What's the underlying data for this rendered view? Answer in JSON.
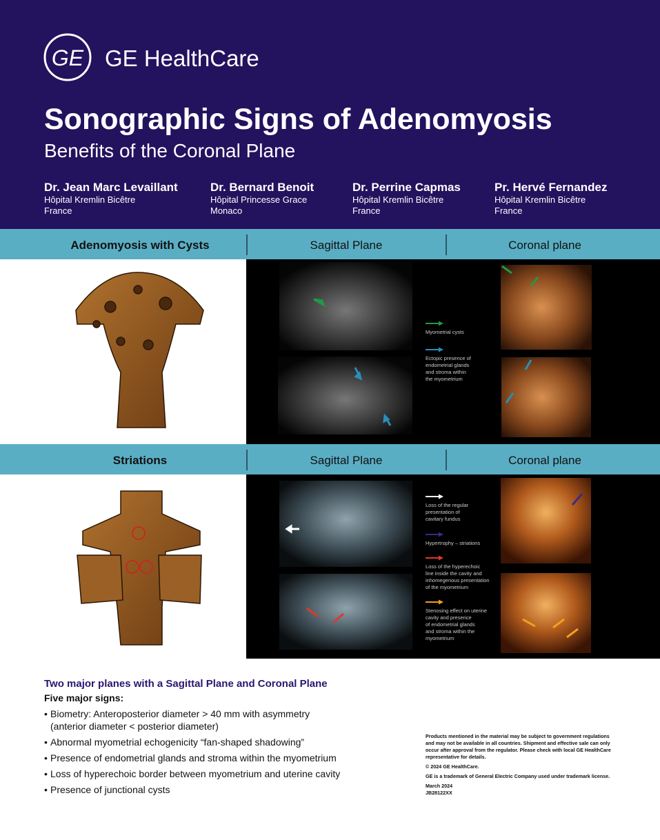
{
  "header": {
    "logo": "GE",
    "brand": "GE HealthCare",
    "title": "Sonographic Signs of Adenomyosis",
    "subtitle": "Benefits of the Coronal Plane",
    "authors": [
      {
        "name": "Dr. Jean Marc Levaillant",
        "affiliation": "Hôpital Kremlin Bicêtre",
        "country": "France"
      },
      {
        "name": "Dr. Bernard Benoit",
        "affiliation": "Hôpital Princesse Grace",
        "country": "Monaco"
      },
      {
        "name": "Dr. Perrine Capmas",
        "affiliation": "Hôpital Kremlin Bicêtre",
        "country": "France"
      },
      {
        "name": "Pr. Hervé Fernandez",
        "affiliation": "Hôpital Kremlin Bicêtre",
        "country": "France"
      }
    ]
  },
  "sections": [
    {
      "headers": [
        "Adenomyosis with Cysts",
        "Sagittal Plane",
        "Coronal plane"
      ],
      "legend": [
        {
          "color": "#1e9a4a",
          "lines": [
            "Myometrial cysts"
          ]
        },
        {
          "color": "#2a8fb8",
          "lines": [
            "Ectopic presence of",
            "endometrial glands",
            "and stroma within",
            "the myometrium"
          ]
        }
      ]
    },
    {
      "headers": [
        "Striations",
        "Sagittal Plane",
        "Coronal plane"
      ],
      "legend": [
        {
          "color": "#ffffff",
          "lines": [
            "Loss of the regular",
            "presentation of",
            "cavitary fundus"
          ]
        },
        {
          "color": "#3a2a8a",
          "lines": [
            "Hypertrophy – striations"
          ]
        },
        {
          "color": "#e0382a",
          "lines": [
            "Loss of the hyperechoic",
            "line inside the cavity and",
            "inhomegenous presentation",
            "of the myometrium"
          ]
        },
        {
          "color": "#f0a020",
          "lines": [
            "Stenosing effect on uterine",
            "cavity and presence",
            "of endometrial glands",
            "and stroma within the",
            "myometrium"
          ]
        }
      ]
    }
  ],
  "summary": {
    "heading": "Two major planes with a Sagittal Plane and Coronal Plane",
    "subheading": "Five major signs:",
    "signs": [
      {
        "lines": [
          "Biometry: Anteroposterior diameter > 40 mm with asymmetry",
          "(anterior diameter < posterior diameter)"
        ]
      },
      {
        "lines": [
          "Abnormal myometrial echogenicity “fan-shaped shadowing”"
        ]
      },
      {
        "lines": [
          "Presence of endometrial glands and stroma within the myometrium"
        ]
      },
      {
        "lines": [
          "Loss of hyperechoic border between myometrium and uterine cavity"
        ]
      },
      {
        "lines": [
          "Presence of junctional cysts"
        ]
      }
    ]
  },
  "footer": {
    "disclaimer": [
      "Products mentioned in the material may be subject to government regulations",
      "and may not be available in all countries. Shipment and effective sale can only",
      "occur after approval from the regulator. Please check with local GE HealthCare",
      "representative for details."
    ],
    "copyright": "© 2024 GE HealthCare.",
    "trademark": "GE is a trademark of General Electric Company used under trademark license.",
    "date": "March 2024",
    "code": "JB28122XX"
  }
}
